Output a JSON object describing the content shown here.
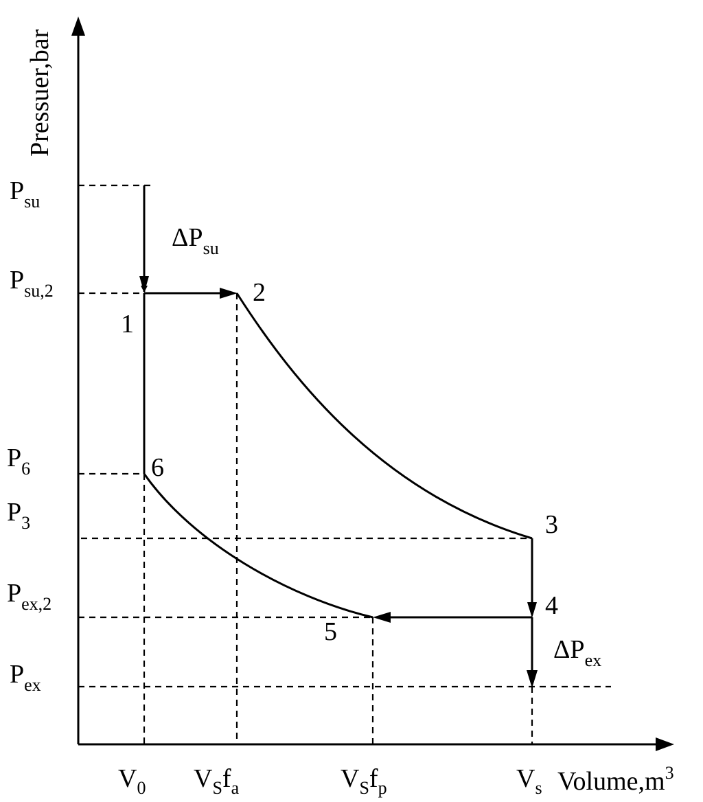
{
  "axes": {
    "y_label": "Pressuer,bar",
    "x_label": "Volume,m",
    "x_label_sup": "3"
  },
  "pressure_labels": {
    "p_su": {
      "main": "P",
      "sub": "su"
    },
    "p_su2": {
      "main": "P",
      "sub": "su,2"
    },
    "p_6": {
      "main": "P",
      "sub": "6"
    },
    "p_3": {
      "main": "P",
      "sub": "3"
    },
    "p_ex2": {
      "main": "P",
      "sub": "ex,2"
    },
    "p_ex": {
      "main": "P",
      "sub": "ex"
    }
  },
  "volume_labels": {
    "v_0": {
      "main": "V",
      "sub": "0"
    },
    "vs_fa": {
      "main1": "V",
      "sub1": "S",
      "main2": "f",
      "sub2": "a"
    },
    "vs_fp": {
      "main1": "V",
      "sub1": "S",
      "main2": "f",
      "sub2": "p"
    },
    "v_s": {
      "main": "V",
      "sub": "s"
    }
  },
  "deltas": {
    "delta_p_su": {
      "main": "ΔP",
      "sub": "su"
    },
    "delta_p_ex": {
      "main": "ΔP",
      "sub": "ex"
    }
  },
  "points": {
    "p1": "1",
    "p2": "2",
    "p3": "3",
    "p4": "4",
    "p5": "5",
    "p6": "6"
  }
}
